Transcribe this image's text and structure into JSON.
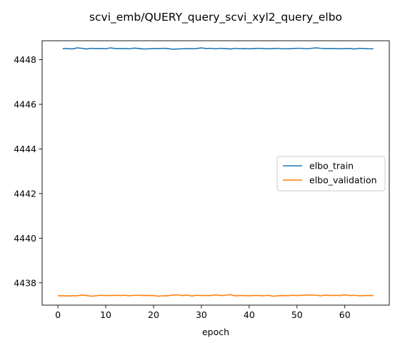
{
  "chart_data": {
    "type": "line",
    "title": "scvi_emb/QUERY_query_scvi_xyl2_query_elbo",
    "xlabel": "epoch",
    "ylabel": "",
    "xlim": [
      -3.3,
      69.3
    ],
    "ylim": [
      4437.0,
      4448.85
    ],
    "xticks": [
      0,
      10,
      20,
      30,
      40,
      50,
      60
    ],
    "yticks": [
      4438,
      4440,
      4442,
      4444,
      4446,
      4448
    ],
    "grid": false,
    "legend": "center-right",
    "series": [
      {
        "name": "elbo_train",
        "color": "#1f77b4",
        "x": [
          1,
          2,
          3,
          4,
          5,
          6,
          7,
          8,
          9,
          10,
          11,
          12,
          13,
          14,
          15,
          16,
          17,
          18,
          19,
          20,
          21,
          22,
          23,
          24,
          25,
          26,
          27,
          28,
          29,
          30,
          31,
          32,
          33,
          34,
          35,
          36,
          37,
          38,
          39,
          40,
          41,
          42,
          43,
          44,
          45,
          46,
          47,
          48,
          49,
          50,
          51,
          52,
          53,
          54,
          55,
          56,
          57,
          58,
          59,
          60,
          61,
          62,
          63,
          64,
          65,
          66
        ],
        "values": [
          4448.5,
          4448.5,
          4448.48,
          4448.53,
          4448.51,
          4448.48,
          4448.51,
          4448.5,
          4448.5,
          4448.49,
          4448.53,
          4448.5,
          4448.5,
          4448.5,
          4448.49,
          4448.52,
          4448.5,
          4448.48,
          4448.49,
          4448.5,
          4448.5,
          4448.51,
          4448.5,
          4448.47,
          4448.48,
          4448.49,
          4448.5,
          4448.49,
          4448.5,
          4448.53,
          4448.5,
          4448.51,
          4448.49,
          4448.51,
          4448.5,
          4448.48,
          4448.51,
          4448.49,
          4448.5,
          4448.49,
          4448.5,
          4448.51,
          4448.5,
          4448.49,
          4448.5,
          4448.51,
          4448.49,
          4448.49,
          4448.5,
          4448.51,
          4448.51,
          4448.49,
          4448.51,
          4448.53,
          4448.51,
          4448.5,
          4448.5,
          4448.5,
          4448.49,
          4448.5,
          4448.5,
          4448.48,
          4448.51,
          4448.5,
          4448.49,
          4448.49
        ]
      },
      {
        "name": "elbo_validation",
        "color": "#ff7f0e",
        "x": [
          0,
          1,
          2,
          3,
          4,
          5,
          6,
          7,
          8,
          9,
          10,
          11,
          12,
          13,
          14,
          15,
          16,
          17,
          18,
          19,
          20,
          21,
          22,
          23,
          24,
          25,
          26,
          27,
          28,
          29,
          30,
          31,
          32,
          33,
          34,
          35,
          36,
          37,
          38,
          39,
          40,
          41,
          42,
          43,
          44,
          45,
          46,
          47,
          48,
          49,
          50,
          51,
          52,
          53,
          54,
          55,
          56,
          57,
          58,
          59,
          60,
          61,
          62,
          63,
          64,
          65,
          66
        ],
        "values": [
          4437.42,
          4437.42,
          4437.41,
          4437.42,
          4437.42,
          4437.45,
          4437.43,
          4437.4,
          4437.42,
          4437.44,
          4437.43,
          4437.43,
          4437.44,
          4437.43,
          4437.44,
          4437.42,
          4437.44,
          4437.44,
          4437.43,
          4437.43,
          4437.43,
          4437.4,
          4437.42,
          4437.42,
          4437.45,
          4437.46,
          4437.43,
          4437.45,
          4437.41,
          4437.44,
          4437.43,
          4437.43,
          4437.43,
          4437.46,
          4437.43,
          4437.44,
          4437.47,
          4437.42,
          4437.43,
          4437.43,
          4437.42,
          4437.43,
          4437.43,
          4437.42,
          4437.44,
          4437.4,
          4437.42,
          4437.43,
          4437.42,
          4437.44,
          4437.43,
          4437.44,
          4437.45,
          4437.45,
          4437.44,
          4437.42,
          4437.45,
          4437.43,
          4437.44,
          4437.43,
          4437.46,
          4437.43,
          4437.44,
          4437.42,
          4437.43,
          4437.43,
          4437.43
        ]
      }
    ]
  }
}
